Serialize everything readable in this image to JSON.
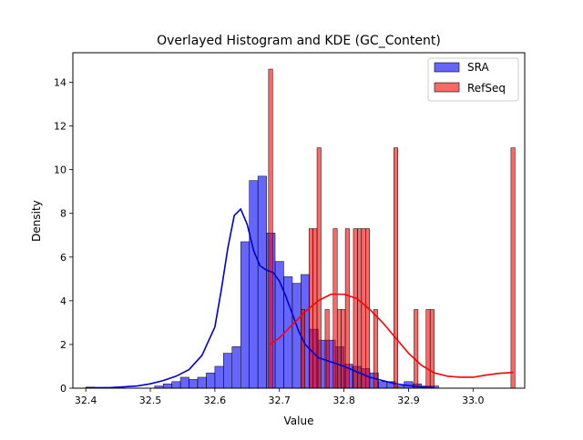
{
  "chart_data": {
    "type": "bar",
    "title": "Overlayed Histogram and KDE (GC_Content)",
    "xlabel": "Value",
    "ylabel": "Density",
    "xlim": [
      32.38,
      33.08
    ],
    "ylim": [
      0,
      15.35
    ],
    "xticks": [
      32.4,
      32.5,
      32.6,
      32.7,
      32.8,
      32.9,
      33.0
    ],
    "xtick_labels": [
      "32.4",
      "32.5",
      "32.6",
      "32.7",
      "32.8",
      "32.9",
      "33.0"
    ],
    "yticks": [
      0,
      2,
      4,
      6,
      8,
      10,
      12,
      14
    ],
    "ytick_labels": [
      "0",
      "2",
      "4",
      "6",
      "8",
      "10",
      "12",
      "14"
    ],
    "legend_position": "top-right",
    "grid": false,
    "series": [
      {
        "name": "SRA",
        "color": "#0000ff",
        "alpha": 0.6,
        "bin_width": 0.01333,
        "bins_start": [
          32.4,
          32.4133,
          32.4267,
          32.44,
          32.4533,
          32.4667,
          32.48,
          32.4933,
          32.5067,
          32.52,
          32.5333,
          32.5467,
          32.56,
          32.5733,
          32.5867,
          32.6,
          32.6133,
          32.6267,
          32.64,
          32.6533,
          32.6667,
          32.68,
          32.6933,
          32.7067,
          32.72,
          32.7333,
          32.7467,
          32.76,
          32.7733,
          32.7867,
          32.8,
          32.8133,
          32.8267,
          32.84,
          32.8533,
          32.8667,
          32.88,
          32.8933,
          32.9067,
          32.92,
          32.9333
        ],
        "densities": [
          0.05,
          0,
          0,
          0,
          0,
          0,
          0,
          0,
          0.1,
          0.2,
          0.3,
          0.5,
          0.4,
          0.5,
          0.7,
          1.0,
          1.6,
          1.9,
          6.7,
          9.5,
          9.7,
          7.1,
          5.8,
          5.1,
          4.8,
          5.2,
          2.7,
          2.2,
          2.2,
          1.9,
          1.1,
          1.0,
          0.9,
          0.7,
          0.3,
          0.3,
          0.1,
          0.3,
          0.2,
          0.1,
          0.1
        ],
        "kde": {
          "x": [
            32.4,
            32.44,
            32.48,
            32.5,
            32.52,
            32.54,
            32.56,
            32.58,
            32.6,
            32.61,
            32.62,
            32.63,
            32.64,
            32.65,
            32.66,
            32.67,
            32.68,
            32.69,
            32.7,
            32.71,
            32.72,
            32.73,
            32.74,
            32.76,
            32.78,
            32.8,
            32.82,
            32.84,
            32.86,
            32.88,
            32.9,
            32.92,
            32.94
          ],
          "y": [
            0.02,
            0.03,
            0.1,
            0.2,
            0.35,
            0.55,
            0.85,
            1.5,
            2.8,
            4.5,
            6.4,
            7.9,
            8.2,
            7.5,
            6.3,
            5.6,
            5.4,
            5.3,
            4.9,
            4.2,
            3.4,
            2.6,
            2.0,
            1.4,
            1.2,
            1.0,
            0.75,
            0.5,
            0.35,
            0.2,
            0.12,
            0.06,
            0.03
          ]
        }
      },
      {
        "name": "RefSeq",
        "color": "#ff0000",
        "alpha": 0.6,
        "bin_width": 0.00626,
        "bins_start": [
          32.6832,
          32.6895,
          32.6957,
          32.702,
          32.7082,
          32.7145,
          32.7208,
          32.727,
          32.7333,
          32.7395,
          32.7458,
          32.752,
          32.7583,
          32.7646,
          32.7708,
          32.7771,
          32.7833,
          32.7896,
          32.7958,
          32.8021,
          32.8084,
          32.8146,
          32.8209,
          32.8271,
          32.8334,
          32.8396,
          32.8459,
          32.8522,
          32.8584,
          32.8647,
          32.8709,
          32.8772,
          32.8834,
          32.8897,
          32.896,
          32.9022,
          32.9085,
          32.9147,
          32.921,
          32.9272,
          33.0587
        ],
        "densities": [
          14.6,
          0,
          0,
          0,
          0,
          0,
          0,
          0,
          3.6,
          0,
          7.3,
          7.3,
          11.0,
          0,
          3.6,
          0,
          7.3,
          3.6,
          3.6,
          7.3,
          0,
          7.3,
          7.3,
          7.3,
          7.3,
          0,
          3.6,
          0,
          0,
          0,
          0,
          11.0,
          0,
          0,
          0,
          0,
          3.6,
          0,
          0,
          3.6,
          11.0
        ],
        "extra_bin": {
          "start": 32.9335,
          "density": 3.6
        },
        "kde": {
          "x": [
            32.685,
            32.7,
            32.72,
            32.74,
            32.76,
            32.78,
            32.8,
            32.82,
            32.84,
            32.86,
            32.88,
            32.9,
            32.92,
            32.94,
            32.96,
            32.98,
            33.0,
            33.02,
            33.04,
            33.062
          ],
          "y": [
            2.0,
            2.3,
            2.9,
            3.5,
            4.0,
            4.3,
            4.3,
            4.1,
            3.6,
            3.0,
            2.3,
            1.6,
            1.05,
            0.7,
            0.55,
            0.5,
            0.5,
            0.6,
            0.68,
            0.72
          ]
        }
      }
    ]
  }
}
